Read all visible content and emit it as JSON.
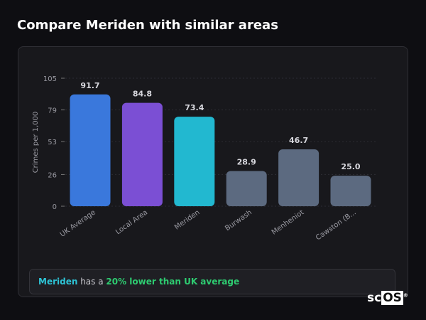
{
  "title": "Compare Meriden with similar areas",
  "chart_data": {
    "type": "bar",
    "ylabel": "Crimes per 1,000",
    "xlabel": "",
    "ylim": [
      0,
      105
    ],
    "yticks": [
      0,
      26,
      53,
      79,
      105
    ],
    "grid": true,
    "categories": [
      "UK Average",
      "Local Area",
      "Meriden",
      "Burwash",
      "Menheniot",
      "Cawston (B..."
    ],
    "values": [
      91.7,
      84.8,
      73.4,
      28.9,
      46.7,
      25.0
    ],
    "value_labels": [
      "91.7",
      "84.8",
      "73.4",
      "28.9",
      "46.7",
      "25.0"
    ],
    "colors": [
      "#3a78dc",
      "#7b4fd4",
      "#22b8d0",
      "#5c6a80",
      "#5c6a80",
      "#5c6a80"
    ]
  },
  "summary": {
    "area": "Meriden",
    "middle": " has a ",
    "comparison": "20% lower than UK average"
  },
  "logo": {
    "text_a": "sc",
    "text_b": "OS",
    "mark": "®"
  }
}
